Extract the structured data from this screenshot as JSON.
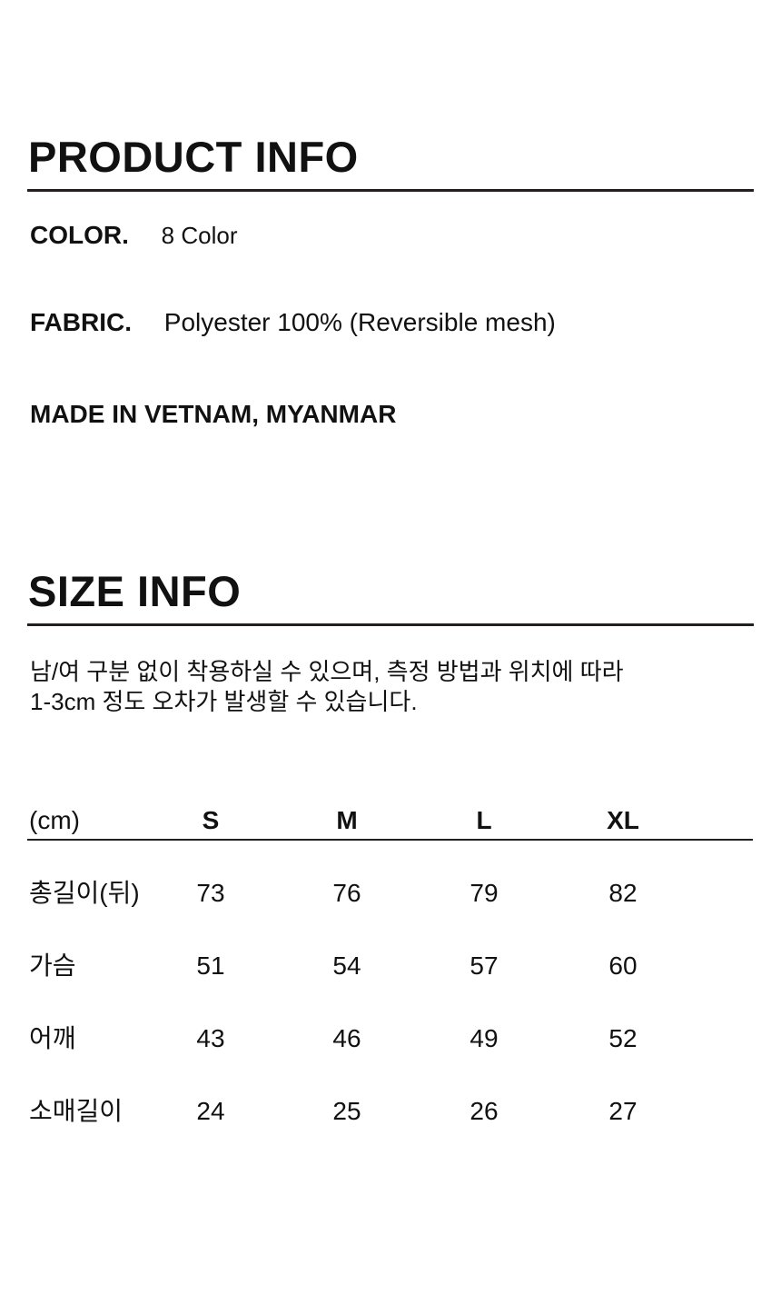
{
  "product": {
    "title": "PRODUCT INFO",
    "color_label": "COLOR.",
    "color_value": "8 Color",
    "fabric_label": "FABRIC.",
    "fabric_value": "Polyester 100% (Reversible mesh)",
    "origin": "MADE IN VETNAM, MYANMAR"
  },
  "size": {
    "title": "SIZE INFO",
    "notice_line1": "남/여 구분 없이 착용하실 수 있으며, 측정 방법과 위치에 따라",
    "notice_line2": "1-3cm 정도 오차가 발생할 수 있습니다.",
    "table": {
      "unit": "(cm)",
      "headers": [
        "S",
        "M",
        "L",
        "XL"
      ],
      "rows": [
        {
          "label": "총길이(뒤)",
          "values": [
            "73",
            "76",
            "79",
            "82"
          ]
        },
        {
          "label": "가슴",
          "values": [
            "51",
            "54",
            "57",
            "60"
          ]
        },
        {
          "label": "어깨",
          "values": [
            "43",
            "46",
            "49",
            "52"
          ]
        },
        {
          "label": "소매길이",
          "values": [
            "24",
            "25",
            "26",
            "27"
          ]
        }
      ]
    }
  }
}
